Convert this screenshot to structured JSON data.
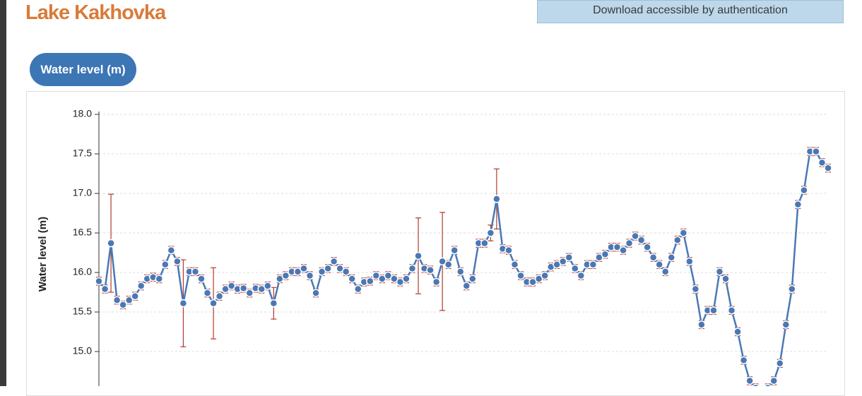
{
  "header": {
    "title": "Lake Kakhovka",
    "download": "Download accessible by authentication",
    "tab": "Water level (m)"
  },
  "chart_data": {
    "type": "line",
    "y_label": "Water level (m)",
    "color": "#4a78b5",
    "error_color": "#b03a2e",
    "ylim": [
      14.5,
      18.0
    ],
    "yticks": [
      {
        "value": 15.0,
        "label": "15.0"
      },
      {
        "value": 15.5,
        "label": "15.5"
      },
      {
        "value": 16.0,
        "label": "16.0"
      },
      {
        "value": 16.5,
        "label": "16.5"
      },
      {
        "value": 17.0,
        "label": "17.0"
      },
      {
        "value": 17.5,
        "label": "17.5"
      },
      {
        "value": 18.0,
        "label": "18.0"
      }
    ],
    "grid": true,
    "values": [
      15.89,
      15.79,
      16.37,
      15.65,
      15.59,
      15.65,
      15.7,
      15.83,
      15.92,
      15.94,
      15.92,
      16.1,
      16.28,
      16.14,
      15.61,
      16.01,
      16.01,
      15.92,
      15.74,
      15.61,
      15.7,
      15.79,
      15.83,
      15.79,
      15.8,
      15.74,
      15.8,
      15.79,
      15.83,
      15.61,
      15.92,
      15.96,
      16.01,
      16.01,
      16.05,
      15.96,
      15.74,
      16.01,
      16.05,
      16.14,
      16.05,
      16.01,
      15.92,
      15.79,
      15.88,
      15.89,
      15.96,
      15.92,
      15.96,
      15.92,
      15.88,
      15.92,
      16.05,
      16.21,
      16.05,
      16.03,
      15.88,
      16.14,
      16.1,
      16.28,
      16.01,
      15.83,
      15.92,
      16.37,
      16.37,
      16.5,
      16.93,
      16.3,
      16.28,
      16.1,
      15.96,
      15.88,
      15.88,
      15.92,
      15.96,
      16.07,
      16.1,
      16.14,
      16.19,
      16.05,
      15.96,
      16.1,
      16.1,
      16.19,
      16.23,
      16.32,
      16.32,
      16.28,
      16.37,
      16.46,
      16.41,
      16.32,
      16.19,
      16.1,
      16.01,
      16.19,
      16.41,
      16.5,
      16.14,
      15.79,
      15.34,
      15.52,
      15.52,
      16.01,
      15.92,
      15.52,
      15.25,
      14.89,
      14.63,
      14.54,
      14.49,
      14.54,
      14.63,
      14.85,
      15.34,
      15.79,
      16.86,
      17.04,
      17.53,
      17.53,
      17.39,
      17.32
    ],
    "errors": [
      0.05,
      0.05,
      0.62,
      0.05,
      0.05,
      0.05,
      0.05,
      0.05,
      0.05,
      0.05,
      0.05,
      0.05,
      0.05,
      0.05,
      0.55,
      0.05,
      0.05,
      0.05,
      0.05,
      0.45,
      0.05,
      0.05,
      0.05,
      0.05,
      0.05,
      0.05,
      0.05,
      0.05,
      0.05,
      0.2,
      0.05,
      0.05,
      0.05,
      0.05,
      0.05,
      0.05,
      0.05,
      0.05,
      0.05,
      0.05,
      0.05,
      0.05,
      0.05,
      0.05,
      0.05,
      0.05,
      0.05,
      0.05,
      0.05,
      0.05,
      0.05,
      0.05,
      0.05,
      0.48,
      0.05,
      0.05,
      0.05,
      0.62,
      0.05,
      0.05,
      0.05,
      0.05,
      0.05,
      0.05,
      0.05,
      0.1,
      0.38,
      0.05,
      0.05,
      0.05,
      0.05,
      0.05,
      0.05,
      0.05,
      0.05,
      0.05,
      0.05,
      0.05,
      0.05,
      0.05,
      0.05,
      0.05,
      0.05,
      0.05,
      0.05,
      0.05,
      0.05,
      0.05,
      0.05,
      0.05,
      0.05,
      0.05,
      0.05,
      0.05,
      0.05,
      0.05,
      0.05,
      0.05,
      0.05,
      0.05,
      0.05,
      0.05,
      0.05,
      0.05,
      0.05,
      0.05,
      0.05,
      0.05,
      0.05,
      0.05,
      0.05,
      0.05,
      0.05,
      0.05,
      0.05,
      0.05,
      0.05,
      0.05,
      0.05,
      0.05,
      0.05,
      0.05
    ]
  }
}
